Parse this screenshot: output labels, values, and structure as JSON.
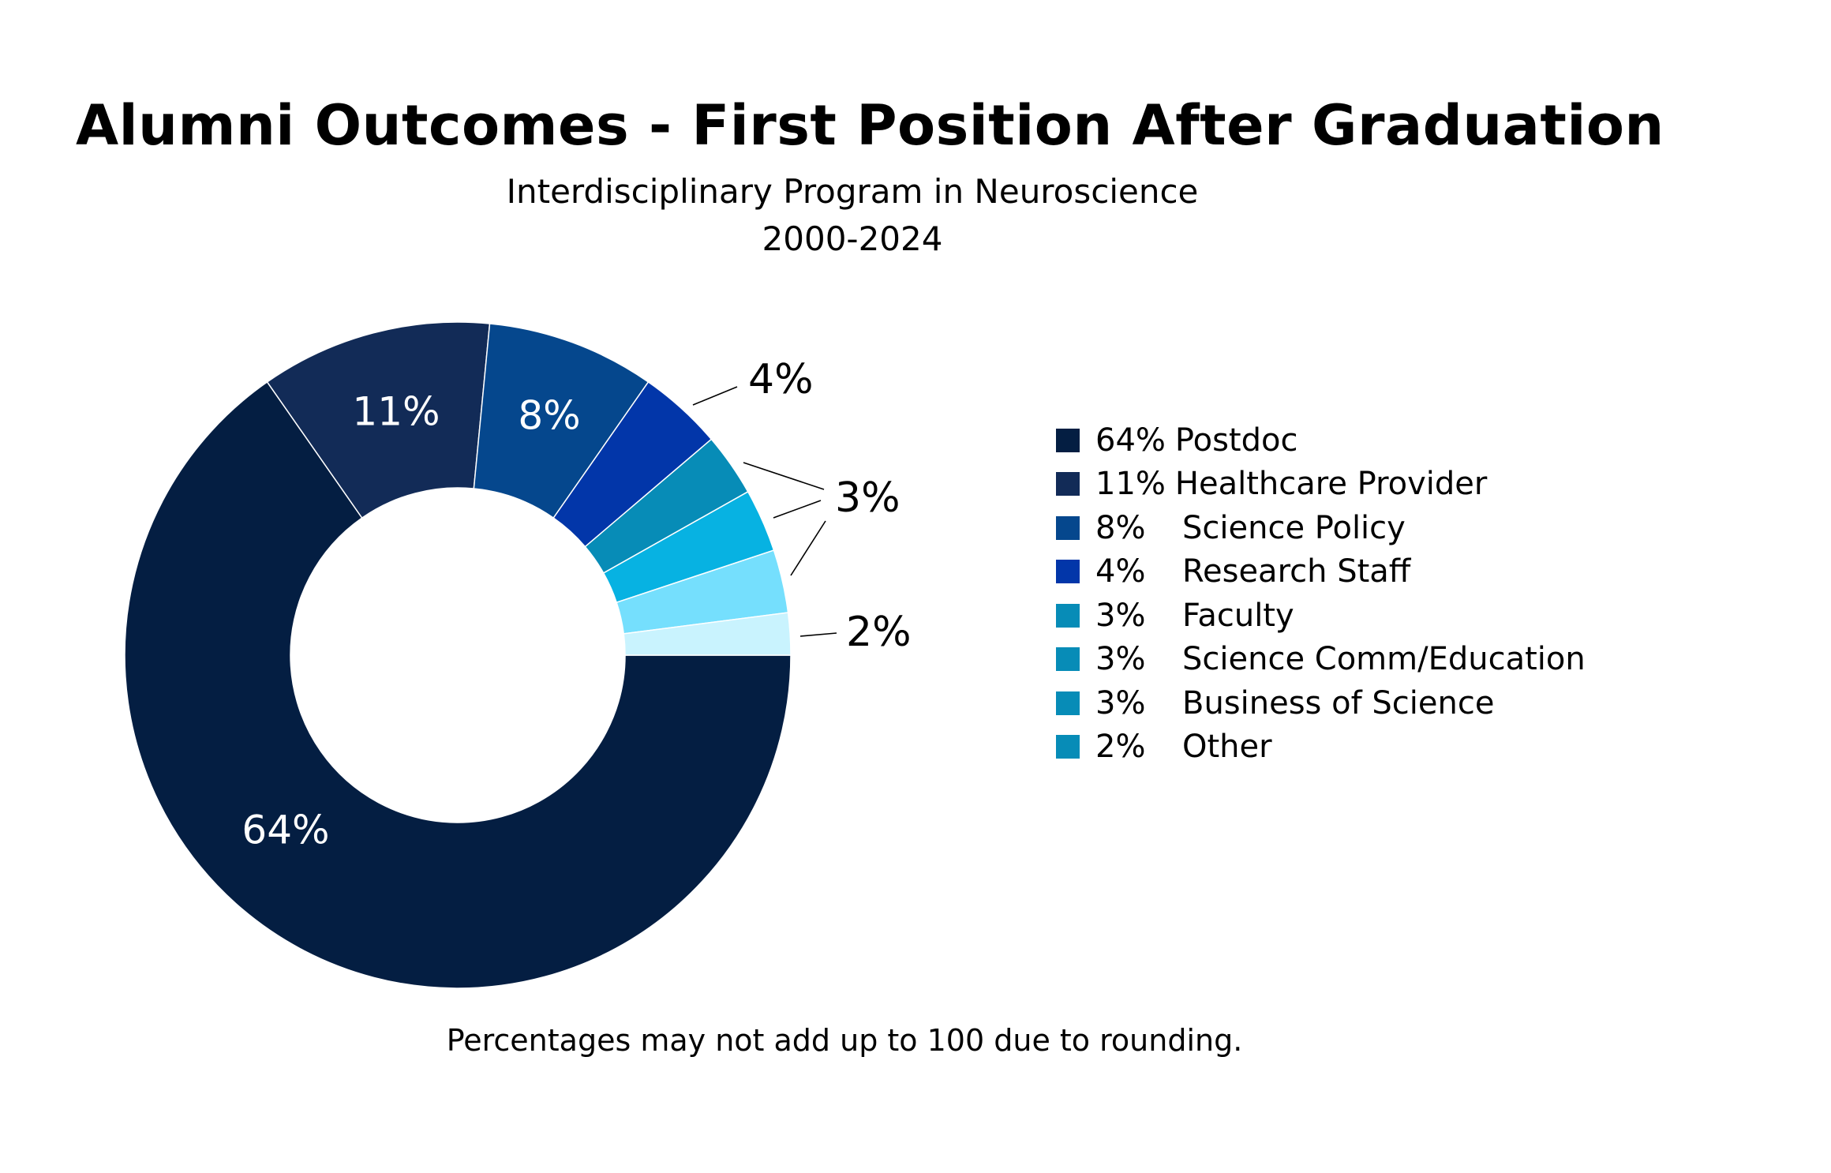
{
  "chart_data": {
    "type": "pie",
    "variant": "donut",
    "title": "Alumni Outcomes - First Position After Graduation",
    "subtitle": [
      "Interdisciplinary Program in Neuroscience",
      "2000-2024"
    ],
    "footnote": "Percentages may not add up to 100 due to rounding.",
    "legend_position": "right",
    "slices": [
      {
        "name": "Postdoc",
        "value": 64,
        "label": "64%",
        "legend_pct": "64%",
        "color": "#041E42",
        "label_color": "#ffffff"
      },
      {
        "name": "Healthcare Provider",
        "value": 11,
        "label": "11%",
        "legend_pct": "11%",
        "color": "#122B57",
        "label_color": "#ffffff"
      },
      {
        "name": "Science Policy",
        "value": 8,
        "label": "8%",
        "legend_pct": "8%",
        "color": "#05478D",
        "label_color": "#ffffff"
      },
      {
        "name": "Research Staff",
        "value": 4,
        "label": "4%",
        "legend_pct": "4%",
        "color": "#0236A9",
        "label_color": "#000000"
      },
      {
        "name": "Faculty",
        "value": 3,
        "label": "3%",
        "legend_pct": "3%",
        "color": "#078CB7",
        "label_color": "#000000"
      },
      {
        "name": "Science Comm/Education",
        "value": 3,
        "label": "3%",
        "legend_pct": "3%",
        "color": "#07B2E2",
        "label_color": "#000000"
      },
      {
        "name": "Business of Science",
        "value": 3,
        "label": "3%",
        "legend_pct": "3%",
        "color": "#75DFFD",
        "label_color": "#000000"
      },
      {
        "name": "Other",
        "value": 2,
        "label": "2%",
        "legend_pct": "2%",
        "color": "#C9F3FE",
        "label_color": "#000000"
      }
    ],
    "legend_swatch_colors": [
      "#041E42",
      "#122B57",
      "#05478D",
      "#0236A9",
      "#078CB7",
      "#078CB7",
      "#078CB7",
      "#078CB7"
    ],
    "outside_labels": {
      "research_staff": "4%",
      "shared_three": "3%",
      "other": "2%"
    }
  }
}
